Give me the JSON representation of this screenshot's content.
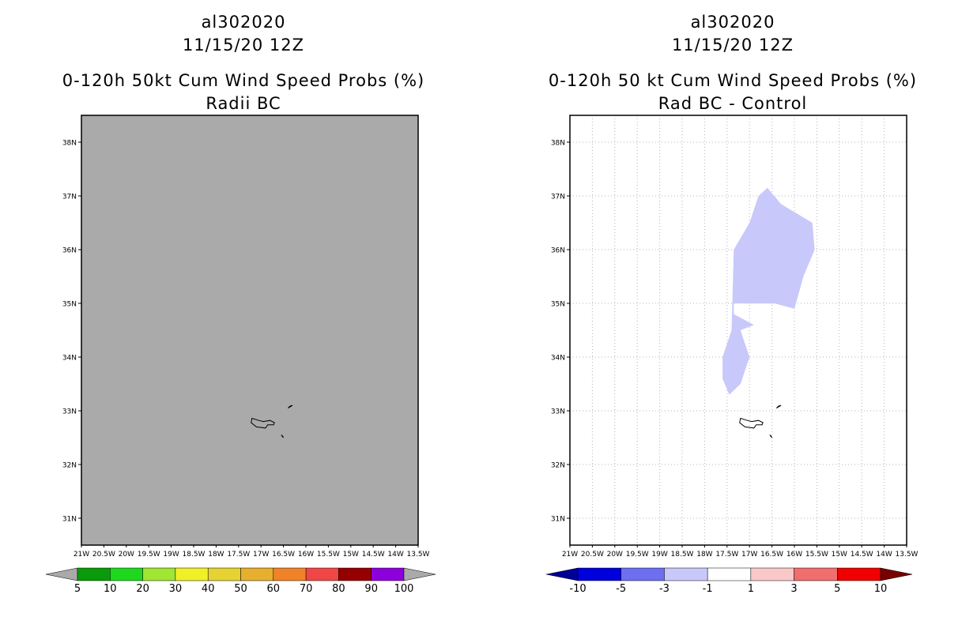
{
  "chart_data": [
    {
      "type": "map",
      "header": {
        "line1": "al302020",
        "line2": "11/15/20 12Z",
        "line3": "0-120h 50kt Cum Wind Speed Probs (%)",
        "line4": "Radii BC"
      },
      "lon_range": [
        -21,
        -13.5
      ],
      "lat_range": [
        30.5,
        38.5
      ],
      "lon_ticks": [
        "21W",
        "20.5W",
        "20W",
        "19.5W",
        "19W",
        "18.5W",
        "18W",
        "17.5W",
        "17W",
        "16.5W",
        "16W",
        "15.5W",
        "15W",
        "14.5W",
        "14W",
        "13.5W"
      ],
      "lat_ticks": [
        {
          "lat": 31,
          "label": "31N"
        },
        {
          "lat": 32,
          "label": "32N"
        },
        {
          "lat": 33,
          "label": "33N"
        },
        {
          "lat": 34,
          "label": "34N"
        },
        {
          "lat": 35,
          "label": "35N"
        },
        {
          "lat": 36,
          "label": "36N"
        },
        {
          "lat": 37,
          "label": "37N"
        },
        {
          "lat": 38,
          "label": "38N"
        }
      ],
      "background": "#aaaaaa",
      "grid": false,
      "colorbar": {
        "labels": [
          "5",
          "10",
          "20",
          "30",
          "40",
          "50",
          "60",
          "70",
          "80",
          "90",
          "100"
        ],
        "colors": [
          "#0a9a0a",
          "#1ed81e",
          "#a0e632",
          "#f0f028",
          "#e6d232",
          "#e6af2d",
          "#f08228",
          "#f04646",
          "#960000",
          "#8c00dc"
        ],
        "under_color": "#aaaaaa",
        "over_color": "#aaaaaa"
      }
    },
    {
      "type": "map",
      "header": {
        "line1": "al302020",
        "line2": "11/15/20 12Z",
        "line3": "0-120h 50 kt Cum Wind Speed Probs (%)",
        "line4": "Rad BC - Control"
      },
      "lon_range": [
        -21,
        -13.5
      ],
      "lat_range": [
        30.5,
        38.5
      ],
      "lon_ticks": [
        "21W",
        "20.5W",
        "20W",
        "19.5W",
        "19W",
        "18.5W",
        "18W",
        "17.5W",
        "17W",
        "16.5W",
        "16W",
        "15.5W",
        "15W",
        "14.5W",
        "14W",
        "13.5W"
      ],
      "lat_ticks": [
        {
          "lat": 31,
          "label": "31N"
        },
        {
          "lat": 32,
          "label": "32N"
        },
        {
          "lat": 33,
          "label": "33N"
        },
        {
          "lat": 34,
          "label": "34N"
        },
        {
          "lat": 35,
          "label": "35N"
        },
        {
          "lat": 36,
          "label": "36N"
        },
        {
          "lat": 37,
          "label": "37N"
        },
        {
          "lat": 38,
          "label": "38N"
        }
      ],
      "background": "#ffffff",
      "grid": true,
      "filled_region": {
        "class": "-3 to -1",
        "color": "#c8c8fa",
        "points": [
          [
            -17.35,
            36.0
          ],
          [
            -17.0,
            36.5
          ],
          [
            -16.8,
            37.0
          ],
          [
            -16.6,
            37.15
          ],
          [
            -16.3,
            36.85
          ],
          [
            -15.6,
            36.5
          ],
          [
            -15.55,
            36.0
          ],
          [
            -15.8,
            35.5
          ],
          [
            -16.0,
            34.9
          ],
          [
            -16.45,
            35.0
          ],
          [
            -17.35,
            35.0
          ],
          [
            -17.35,
            34.8
          ],
          [
            -16.9,
            34.6
          ],
          [
            -17.2,
            34.5
          ],
          [
            -17.0,
            34.0
          ],
          [
            -17.2,
            33.5
          ],
          [
            -17.45,
            33.3
          ],
          [
            -17.6,
            33.6
          ],
          [
            -17.6,
            34.0
          ],
          [
            -17.4,
            34.5
          ]
        ]
      },
      "colorbar": {
        "labels": [
          "-10",
          "-5",
          "-3",
          "-1",
          "1",
          "3",
          "5",
          "10"
        ],
        "colors": [
          "#0000dc",
          "#6e6ef0",
          "#c8c8fa",
          "#ffffff",
          "#fac8c8",
          "#f06e6e",
          "#f00000"
        ],
        "under_color": "#000096",
        "over_color": "#780000"
      }
    }
  ],
  "land": {
    "madeira": [
      [
        -16.95,
        32.8
      ],
      [
        -16.8,
        32.82
      ],
      [
        -16.7,
        32.78
      ],
      [
        -16.72,
        32.74
      ],
      [
        -16.85,
        32.74
      ],
      [
        -16.9,
        32.68
      ],
      [
        -17.1,
        32.7
      ],
      [
        -17.22,
        32.78
      ],
      [
        -17.2,
        32.86
      ],
      [
        -17.05,
        32.82
      ]
    ],
    "porto_santo": [
      [
        -16.4,
        33.05
      ],
      [
        -16.3,
        33.1
      ],
      [
        -16.35,
        33.09
      ],
      [
        -16.4,
        33.05
      ]
    ],
    "desertas": [
      [
        -16.55,
        32.55
      ],
      [
        -16.5,
        32.5
      ],
      [
        -16.52,
        32.53
      ],
      [
        -16.55,
        32.55
      ]
    ]
  }
}
